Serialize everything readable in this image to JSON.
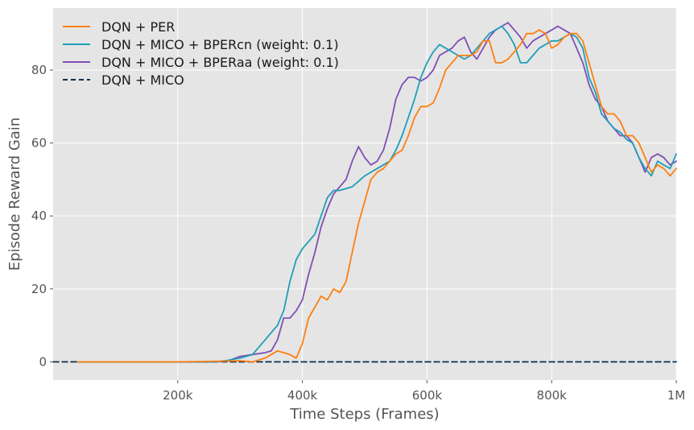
{
  "chart_data": {
    "type": "line",
    "title": "",
    "xlabel": "Time Steps (Frames)",
    "ylabel": "Episode Reward Gain",
    "xlim": [
      0,
      1000000
    ],
    "ylim": [
      -5,
      97
    ],
    "x_ticks": [
      {
        "value": 200000,
        "label": "200k"
      },
      {
        "value": 400000,
        "label": "400k"
      },
      {
        "value": 600000,
        "label": "600k"
      },
      {
        "value": 800000,
        "label": "800k"
      },
      {
        "value": 1000000,
        "label": "1M"
      }
    ],
    "y_ticks": [
      {
        "value": 0,
        "label": "0"
      },
      {
        "value": 20,
        "label": "20"
      },
      {
        "value": 40,
        "label": "40"
      },
      {
        "value": 60,
        "label": "60"
      },
      {
        "value": 80,
        "label": "80"
      }
    ],
    "grid": true,
    "background": "#e5e5e5",
    "legend_position": "top-left",
    "series": [
      {
        "name": "DQN + PER",
        "color": "#ff7f0e",
        "style": "solid",
        "x": [
          40000,
          100000,
          200000,
          280000,
          300000,
          320000,
          340000,
          360000,
          380000,
          390000,
          400000,
          410000,
          420000,
          430000,
          440000,
          450000,
          460000,
          470000,
          480000,
          490000,
          500000,
          510000,
          520000,
          530000,
          540000,
          550000,
          560000,
          570000,
          580000,
          590000,
          600000,
          610000,
          620000,
          630000,
          640000,
          650000,
          660000,
          670000,
          680000,
          690000,
          700000,
          710000,
          720000,
          730000,
          740000,
          750000,
          760000,
          770000,
          780000,
          790000,
          800000,
          810000,
          820000,
          830000,
          840000,
          850000,
          860000,
          870000,
          880000,
          890000,
          900000,
          910000,
          920000,
          930000,
          940000,
          950000,
          960000,
          970000,
          980000,
          990000,
          1000000
        ],
        "y": [
          0,
          0,
          0,
          0.2,
          0.3,
          0,
          1,
          3,
          2,
          1,
          5,
          12,
          15,
          18,
          17,
          20,
          19,
          22,
          30,
          38,
          44,
          50,
          52,
          53,
          55,
          57,
          58,
          62,
          67,
          70,
          70,
          71,
          75,
          80,
          82,
          84,
          84,
          84,
          85,
          88,
          88,
          82,
          82,
          83,
          85,
          87,
          90,
          90,
          91,
          90,
          86,
          87,
          89,
          90,
          90,
          88,
          82,
          76,
          70,
          68,
          68,
          66,
          62,
          62,
          60,
          56,
          52,
          54,
          53,
          51,
          53
        ]
      },
      {
        "name": "DQN + MICO + BPERcn (weight: 0.1)",
        "color": "#1f9eb8",
        "style": "solid",
        "x": [
          40000,
          100000,
          200000,
          260000,
          280000,
          300000,
          320000,
          330000,
          340000,
          350000,
          360000,
          370000,
          380000,
          390000,
          400000,
          410000,
          420000,
          430000,
          440000,
          450000,
          460000,
          480000,
          500000,
          520000,
          540000,
          550000,
          560000,
          570000,
          580000,
          590000,
          600000,
          610000,
          620000,
          630000,
          640000,
          650000,
          660000,
          670000,
          680000,
          690000,
          700000,
          710000,
          720000,
          730000,
          740000,
          750000,
          760000,
          770000,
          780000,
          790000,
          800000,
          810000,
          820000,
          830000,
          840000,
          850000,
          860000,
          870000,
          880000,
          890000,
          900000,
          910000,
          920000,
          930000,
          940000,
          950000,
          960000,
          970000,
          980000,
          990000,
          1000000
        ],
        "y": [
          0,
          0,
          0,
          0,
          0.4,
          1,
          2,
          4,
          6,
          8,
          10,
          14,
          22,
          28,
          31,
          33,
          35,
          40,
          45,
          47,
          47,
          48,
          51,
          53,
          55,
          58,
          62,
          67,
          72,
          78,
          82,
          85,
          87,
          86,
          85,
          84,
          83,
          84,
          86,
          88,
          90,
          91,
          92,
          90,
          87,
          82,
          82,
          84,
          86,
          87,
          88,
          88,
          89,
          90,
          89,
          86,
          78,
          74,
          68,
          66,
          64,
          63,
          61,
          60,
          56,
          53,
          51,
          55,
          54,
          53,
          57
        ]
      },
      {
        "name": "DQN + MICO + BPERaa (weight: 0.1)",
        "color": "#7e4fb3",
        "style": "solid",
        "x": [
          40000,
          100000,
          200000,
          260000,
          280000,
          300000,
          320000,
          340000,
          350000,
          360000,
          370000,
          380000,
          390000,
          400000,
          410000,
          420000,
          430000,
          440000,
          450000,
          460000,
          470000,
          480000,
          490000,
          500000,
          510000,
          520000,
          530000,
          540000,
          550000,
          560000,
          570000,
          580000,
          590000,
          600000,
          610000,
          620000,
          630000,
          640000,
          650000,
          660000,
          670000,
          680000,
          690000,
          700000,
          710000,
          720000,
          730000,
          740000,
          750000,
          760000,
          770000,
          780000,
          790000,
          800000,
          810000,
          820000,
          830000,
          840000,
          850000,
          860000,
          870000,
          880000,
          890000,
          900000,
          910000,
          920000,
          930000,
          940000,
          950000,
          960000,
          970000,
          980000,
          990000,
          1000000
        ],
        "y": [
          0,
          0,
          0,
          0,
          0.2,
          1.5,
          2,
          2.5,
          3,
          6,
          12,
          12,
          14,
          17,
          24,
          30,
          37,
          42,
          46,
          48,
          50,
          55,
          59,
          56,
          54,
          55,
          58,
          64,
          72,
          76,
          78,
          78,
          77,
          78,
          80,
          84,
          85,
          86,
          88,
          89,
          85,
          83,
          86,
          89,
          91,
          92,
          93,
          91,
          89,
          86,
          88,
          89,
          90,
          91,
          92,
          91,
          90,
          86,
          82,
          76,
          72,
          70,
          66,
          64,
          62,
          62,
          60,
          56,
          52,
          56,
          57,
          56,
          54,
          55
        ]
      },
      {
        "name": "DQN + MICO",
        "color": "#0b2f4e",
        "style": "dashed",
        "x": [
          0,
          1000000
        ],
        "y": [
          0,
          0
        ]
      }
    ]
  }
}
